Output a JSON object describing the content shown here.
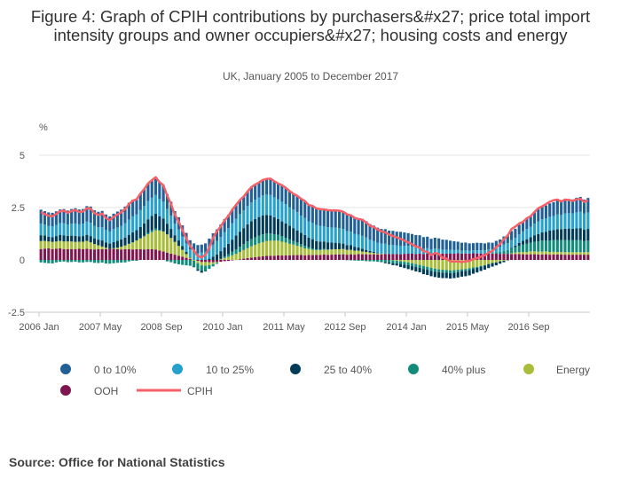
{
  "title": "Figure 4: Graph of CPIH contributions by purchasers&#x27; price total import intensity groups and owner occupiers&#x27; housing costs and energy",
  "subtitle": "UK, January 2005 to December 2017",
  "source": "Source: Office for National Statistics",
  "chart_data": {
    "type": "bar",
    "stacked": true,
    "ylabel": "%",
    "ylim": [
      -2.5,
      5
    ],
    "yticks": [
      "5",
      "2.5",
      "0",
      "-2.5"
    ],
    "xtick_labels": [
      "2006 Jan",
      "2007 May",
      "2008 Sep",
      "2010 Jan",
      "2011 May",
      "2012 Sep",
      "2014 Jan",
      "2015 May",
      "2016 Sep"
    ],
    "x_start": "2006 Jan",
    "x_end": "2017 Dec",
    "grid": true,
    "legend_position": "bottom",
    "colors": {
      "ooh": "#801650",
      "energy": "#a8bd3a",
      "p40": "#118c7b",
      "p25_40": "#003c57",
      "p10_25": "#27a0cc",
      "p0_10": "#206095",
      "cpih": "#f66068"
    },
    "series": [
      {
        "name": "0 to 10%",
        "key": "p0_10",
        "values": [
          0.66,
          0.64,
          0.64,
          0.64,
          0.65,
          0.65,
          0.68,
          0.67,
          0.7,
          0.73,
          0.71,
          0.7,
          0.74,
          0.78,
          0.74,
          0.74,
          0.78,
          0.73,
          0.72,
          0.74,
          0.76,
          0.77,
          0.79,
          0.8,
          0.79,
          0.76,
          0.79,
          0.81,
          0.84,
          0.84,
          0.85,
          0.8,
          0.79,
          0.71,
          0.66,
          0.6,
          0.58,
          0.54,
          0.5,
          0.44,
          0.42,
          0.39,
          0.38,
          0.4,
          0.47,
          0.53,
          0.56,
          0.6,
          0.63,
          0.63,
          0.66,
          0.67,
          0.67,
          0.67,
          0.7,
          0.73,
          0.73,
          0.72,
          0.74,
          0.75,
          0.78,
          0.77,
          0.76,
          0.79,
          0.78,
          0.77,
          0.76,
          0.78,
          0.8,
          0.81,
          0.78,
          0.8,
          0.79,
          0.79,
          0.8,
          0.82,
          0.81,
          0.83,
          0.83,
          0.82,
          0.81,
          0.8,
          0.79,
          0.78,
          0.81,
          0.78,
          0.75,
          0.74,
          0.72,
          0.7,
          0.7,
          0.68,
          0.68,
          0.65,
          0.66,
          0.64,
          0.61,
          0.6,
          0.6,
          0.58,
          0.55,
          0.55,
          0.5,
          0.52,
          0.51,
          0.48,
          0.47,
          0.44,
          0.42,
          0.39,
          0.38,
          0.38,
          0.35,
          0.34,
          0.36,
          0.35,
          0.33,
          0.33,
          0.31,
          0.33,
          0.35,
          0.39,
          0.4,
          0.44,
          0.43,
          0.46,
          0.46,
          0.52,
          0.51,
          0.55,
          0.59,
          0.61,
          0.61,
          0.64,
          0.66,
          0.68,
          0.66,
          0.69,
          0.68,
          0.67,
          0.7,
          0.7,
          0.67,
          0.69
        ]
      },
      {
        "name": "10 to 25%",
        "key": "p10_25",
        "values": [
          0.56,
          0.52,
          0.52,
          0.53,
          0.53,
          0.56,
          0.57,
          0.54,
          0.57,
          0.59,
          0.57,
          0.59,
          0.63,
          0.63,
          0.6,
          0.59,
          0.63,
          0.6,
          0.58,
          0.62,
          0.64,
          0.65,
          0.69,
          0.73,
          0.76,
          0.75,
          0.81,
          0.83,
          0.87,
          0.87,
          0.89,
          0.82,
          0.8,
          0.7,
          0.64,
          0.55,
          0.53,
          0.45,
          0.41,
          0.37,
          0.37,
          0.32,
          0.35,
          0.39,
          0.49,
          0.58,
          0.64,
          0.67,
          0.72,
          0.75,
          0.79,
          0.79,
          0.84,
          0.84,
          0.87,
          0.9,
          0.92,
          0.93,
          0.96,
          0.97,
          0.98,
          0.95,
          0.94,
          0.94,
          0.92,
          0.89,
          0.88,
          0.87,
          0.83,
          0.81,
          0.77,
          0.79,
          0.77,
          0.75,
          0.73,
          0.72,
          0.72,
          0.72,
          0.72,
          0.7,
          0.67,
          0.65,
          0.62,
          0.61,
          0.61,
          0.59,
          0.53,
          0.52,
          0.5,
          0.48,
          0.47,
          0.44,
          0.43,
          0.42,
          0.41,
          0.38,
          0.37,
          0.34,
          0.31,
          0.3,
          0.26,
          0.26,
          0.22,
          0.25,
          0.23,
          0.19,
          0.19,
          0.18,
          0.17,
          0.16,
          0.14,
          0.14,
          0.14,
          0.14,
          0.15,
          0.15,
          0.16,
          0.19,
          0.18,
          0.21,
          0.24,
          0.29,
          0.32,
          0.36,
          0.38,
          0.41,
          0.45,
          0.49,
          0.5,
          0.55,
          0.61,
          0.62,
          0.64,
          0.66,
          0.67,
          0.71,
          0.69,
          0.73,
          0.73,
          0.73,
          0.76,
          0.79,
          0.77,
          0.79
        ]
      },
      {
        "name": "25 to 40%",
        "key": "p25_40",
        "values": [
          0.28,
          0.26,
          0.23,
          0.22,
          0.26,
          0.29,
          0.3,
          0.27,
          0.28,
          0.29,
          0.26,
          0.27,
          0.29,
          0.3,
          0.27,
          0.27,
          0.29,
          0.26,
          0.26,
          0.29,
          0.33,
          0.35,
          0.38,
          0.43,
          0.48,
          0.49,
          0.54,
          0.59,
          0.65,
          0.69,
          0.71,
          0.66,
          0.62,
          0.51,
          0.43,
          0.32,
          0.26,
          0.18,
          0.1,
          0.02,
          -0.03,
          -0.07,
          -0.08,
          -0.03,
          0.06,
          0.16,
          0.26,
          0.37,
          0.44,
          0.5,
          0.58,
          0.66,
          0.72,
          0.77,
          0.82,
          0.85,
          0.88,
          0.89,
          0.9,
          0.88,
          0.86,
          0.81,
          0.75,
          0.71,
          0.68,
          0.65,
          0.61,
          0.58,
          0.54,
          0.52,
          0.47,
          0.44,
          0.39,
          0.38,
          0.36,
          0.34,
          0.32,
          0.31,
          0.29,
          0.26,
          0.23,
          0.22,
          0.19,
          0.16,
          0.14,
          0.1,
          0.08,
          0.05,
          0.02,
          -0.01,
          -0.05,
          -0.07,
          -0.1,
          -0.11,
          -0.15,
          -0.17,
          -0.19,
          -0.19,
          -0.21,
          -0.22,
          -0.25,
          -0.25,
          -0.25,
          -0.25,
          -0.26,
          -0.26,
          -0.26,
          -0.26,
          -0.26,
          -0.26,
          -0.26,
          -0.26,
          -0.25,
          -0.23,
          -0.22,
          -0.21,
          -0.2,
          -0.19,
          -0.17,
          -0.14,
          -0.11,
          -0.07,
          -0.02,
          0.03,
          0.07,
          0.13,
          0.18,
          0.22,
          0.26,
          0.31,
          0.35,
          0.4,
          0.42,
          0.47,
          0.49,
          0.52,
          0.52,
          0.55,
          0.56,
          0.55,
          0.56,
          0.58,
          0.54,
          0.56
        ]
      },
      {
        "name": "40% plus",
        "key": "p40",
        "values": [
          -0.12,
          -0.14,
          -0.16,
          -0.17,
          -0.12,
          -0.09,
          -0.08,
          -0.11,
          -0.1,
          -0.09,
          -0.12,
          -0.12,
          -0.1,
          -0.1,
          -0.14,
          -0.15,
          -0.13,
          -0.17,
          -0.18,
          -0.16,
          -0.14,
          -0.13,
          -0.12,
          -0.07,
          -0.04,
          -0.04,
          0.0,
          0.03,
          0.06,
          0.08,
          0.09,
          0.04,
          0.0,
          -0.07,
          -0.11,
          -0.17,
          -0.21,
          -0.24,
          -0.26,
          -0.28,
          -0.28,
          -0.29,
          -0.27,
          -0.24,
          -0.18,
          -0.11,
          -0.05,
          0.02,
          0.07,
          0.12,
          0.17,
          0.22,
          0.25,
          0.28,
          0.32,
          0.35,
          0.35,
          0.37,
          0.37,
          0.36,
          0.34,
          0.31,
          0.28,
          0.26,
          0.23,
          0.21,
          0.18,
          0.16,
          0.13,
          0.12,
          0.08,
          0.07,
          0.04,
          0.04,
          0.03,
          0.02,
          0.01,
          0.0,
          0.0,
          0.0,
          -0.01,
          -0.02,
          -0.03,
          -0.04,
          -0.04,
          -0.06,
          -0.07,
          -0.07,
          -0.09,
          -0.1,
          -0.11,
          -0.12,
          -0.13,
          -0.12,
          -0.13,
          -0.13,
          -0.13,
          -0.14,
          -0.14,
          -0.13,
          -0.14,
          -0.14,
          -0.15,
          -0.15,
          -0.14,
          -0.14,
          -0.13,
          -0.13,
          -0.12,
          -0.11,
          -0.09,
          -0.09,
          -0.09,
          -0.07,
          -0.05,
          -0.03,
          -0.02,
          0.01,
          0.03,
          0.07,
          0.1,
          0.15,
          0.19,
          0.23,
          0.26,
          0.31,
          0.35,
          0.39,
          0.41,
          0.46,
          0.48,
          0.52,
          0.52,
          0.55,
          0.55,
          0.57,
          0.57,
          0.57,
          0.57,
          0.57,
          0.58,
          0.57,
          0.53,
          0.55
        ]
      },
      {
        "name": "Energy",
        "key": "energy",
        "values": [
          0.38,
          0.37,
          0.33,
          0.34,
          0.35,
          0.36,
          0.36,
          0.37,
          0.36,
          0.34,
          0.34,
          0.36,
          0.38,
          0.33,
          0.26,
          0.19,
          0.13,
          0.06,
          0.0,
          0.03,
          0.07,
          0.13,
          0.18,
          0.26,
          0.34,
          0.42,
          0.52,
          0.62,
          0.72,
          0.82,
          0.91,
          0.94,
          0.96,
          0.87,
          0.75,
          0.61,
          0.47,
          0.33,
          0.18,
          0.06,
          -0.04,
          -0.11,
          -0.16,
          -0.18,
          -0.14,
          -0.09,
          -0.04,
          0.03,
          0.09,
          0.15,
          0.22,
          0.29,
          0.35,
          0.41,
          0.47,
          0.54,
          0.59,
          0.64,
          0.68,
          0.72,
          0.72,
          0.72,
          0.7,
          0.66,
          0.61,
          0.55,
          0.5,
          0.44,
          0.38,
          0.33,
          0.28,
          0.25,
          0.23,
          0.22,
          0.23,
          0.24,
          0.25,
          0.25,
          0.25,
          0.25,
          0.23,
          0.21,
          0.19,
          0.16,
          0.13,
          0.11,
          0.09,
          0.06,
          0.04,
          0.03,
          0.01,
          0.0,
          -0.02,
          -0.04,
          -0.06,
          -0.09,
          -0.12,
          -0.16,
          -0.2,
          -0.24,
          -0.29,
          -0.33,
          -0.38,
          -0.42,
          -0.45,
          -0.47,
          -0.48,
          -0.5,
          -0.49,
          -0.47,
          -0.45,
          -0.43,
          -0.4,
          -0.36,
          -0.33,
          -0.29,
          -0.25,
          -0.2,
          -0.15,
          -0.12,
          -0.07,
          -0.04,
          0.0,
          0.04,
          0.07,
          0.09,
          0.11,
          0.12,
          0.14,
          0.14,
          0.14,
          0.14,
          0.14,
          0.13,
          0.13,
          0.12,
          0.12,
          0.12,
          0.12,
          0.12,
          0.12,
          0.12,
          0.12,
          0.12
        ]
      },
      {
        "name": "OOH",
        "key": "ooh",
        "values": [
          0.52,
          0.54,
          0.55,
          0.52,
          0.53,
          0.55,
          0.52,
          0.51,
          0.52,
          0.52,
          0.53,
          0.51,
          0.53,
          0.51,
          0.5,
          0.51,
          0.51,
          0.52,
          0.52,
          0.53,
          0.51,
          0.5,
          0.51,
          0.51,
          0.5,
          0.51,
          0.51,
          0.5,
          0.51,
          0.51,
          0.5,
          0.45,
          0.4,
          0.35,
          0.3,
          0.25,
          0.2,
          0.15,
          0.1,
          0.05,
          0.0,
          -0.05,
          -0.1,
          -0.1,
          -0.11,
          -0.11,
          -0.1,
          -0.09,
          -0.06,
          -0.05,
          -0.02,
          0.0,
          0.03,
          0.06,
          0.09,
          0.11,
          0.13,
          0.15,
          0.17,
          0.19,
          0.2,
          0.2,
          0.22,
          0.21,
          0.22,
          0.22,
          0.23,
          0.23,
          0.24,
          0.22,
          0.24,
          0.23,
          0.24,
          0.24,
          0.26,
          0.24,
          0.25,
          0.26,
          0.26,
          0.27,
          0.25,
          0.27,
          0.25,
          0.28,
          0.27,
          0.27,
          0.26,
          0.27,
          0.26,
          0.27,
          0.29,
          0.28,
          0.28,
          0.28,
          0.27,
          0.29,
          0.3,
          0.3,
          0.28,
          0.3,
          0.28,
          0.3,
          0.29,
          0.29,
          0.29,
          0.3,
          0.3,
          0.3,
          0.3,
          0.32,
          0.3,
          0.31,
          0.3,
          0.32,
          0.31,
          0.31,
          0.3,
          0.3,
          0.3,
          0.3,
          0.29,
          0.29,
          0.29,
          0.28,
          0.28,
          0.28,
          0.27,
          0.26,
          0.27,
          0.27,
          0.26,
          0.26,
          0.27,
          0.25,
          0.26,
          0.26,
          0.26,
          0.25,
          0.25,
          0.25,
          0.25,
          0.25,
          0.25,
          0.25
        ]
      }
    ],
    "line": {
      "name": "CPIH",
      "key": "cpih",
      "values": [
        2.28,
        2.19,
        2.11,
        2.08,
        2.2,
        2.32,
        2.35,
        2.25,
        2.33,
        2.38,
        2.29,
        2.31,
        2.47,
        2.45,
        2.23,
        2.15,
        2.21,
        2.0,
        1.9,
        2.05,
        2.17,
        2.27,
        2.43,
        2.66,
        2.83,
        2.89,
        3.17,
        3.38,
        3.65,
        3.81,
        3.95,
        3.71,
        3.57,
        3.07,
        2.67,
        2.16,
        1.83,
        1.41,
        1.03,
        0.66,
        0.44,
        0.19,
        0.12,
        0.24,
        0.59,
        1.06,
        1.37,
        1.6,
        1.89,
        2.1,
        2.4,
        2.63,
        2.86,
        3.03,
        3.27,
        3.48,
        3.6,
        3.7,
        3.82,
        3.87,
        3.88,
        3.76,
        3.65,
        3.57,
        3.44,
        3.29,
        3.16,
        3.06,
        2.92,
        2.81,
        2.62,
        2.58,
        2.46,
        2.42,
        2.41,
        2.38,
        2.36,
        2.37,
        2.35,
        2.3,
        2.18,
        2.13,
        2.01,
        1.95,
        1.92,
        1.79,
        1.64,
        1.57,
        1.45,
        1.37,
        1.31,
        1.21,
        1.14,
        1.08,
        1.0,
        0.92,
        0.84,
        0.75,
        0.64,
        0.59,
        0.41,
        0.39,
        0.23,
        0.33,
        0.28,
        0.1,
        0.06,
        -0.07,
        -0.08,
        -0.07,
        -0.1,
        -0.07,
        -0.05,
        0.04,
        0.08,
        0.16,
        0.22,
        0.35,
        0.43,
        0.61,
        0.76,
        0.99,
        1.16,
        1.48,
        1.59,
        1.74,
        1.82,
        1.99,
        2.09,
        2.29,
        2.47,
        2.56,
        2.66,
        2.78,
        2.85,
        2.88,
        2.79,
        2.88,
        2.86,
        2.82,
        2.89,
        2.92,
        2.77,
        2.84
      ]
    }
  },
  "legend": [
    {
      "label": "0 to 10%",
      "key": "p0_10",
      "icon": "circle-icon"
    },
    {
      "label": "10 to 25%",
      "key": "p10_25",
      "icon": "circle-icon"
    },
    {
      "label": "25 to 40%",
      "key": "p25_40",
      "icon": "circle-icon"
    },
    {
      "label": "40% plus",
      "key": "p40",
      "icon": "circle-icon"
    },
    {
      "label": "Energy",
      "key": "energy",
      "icon": "circle-icon"
    },
    {
      "label": "OOH",
      "key": "ooh",
      "icon": "circle-icon"
    },
    {
      "label": "CPIH",
      "key": "cpih",
      "icon": "line-icon"
    }
  ]
}
